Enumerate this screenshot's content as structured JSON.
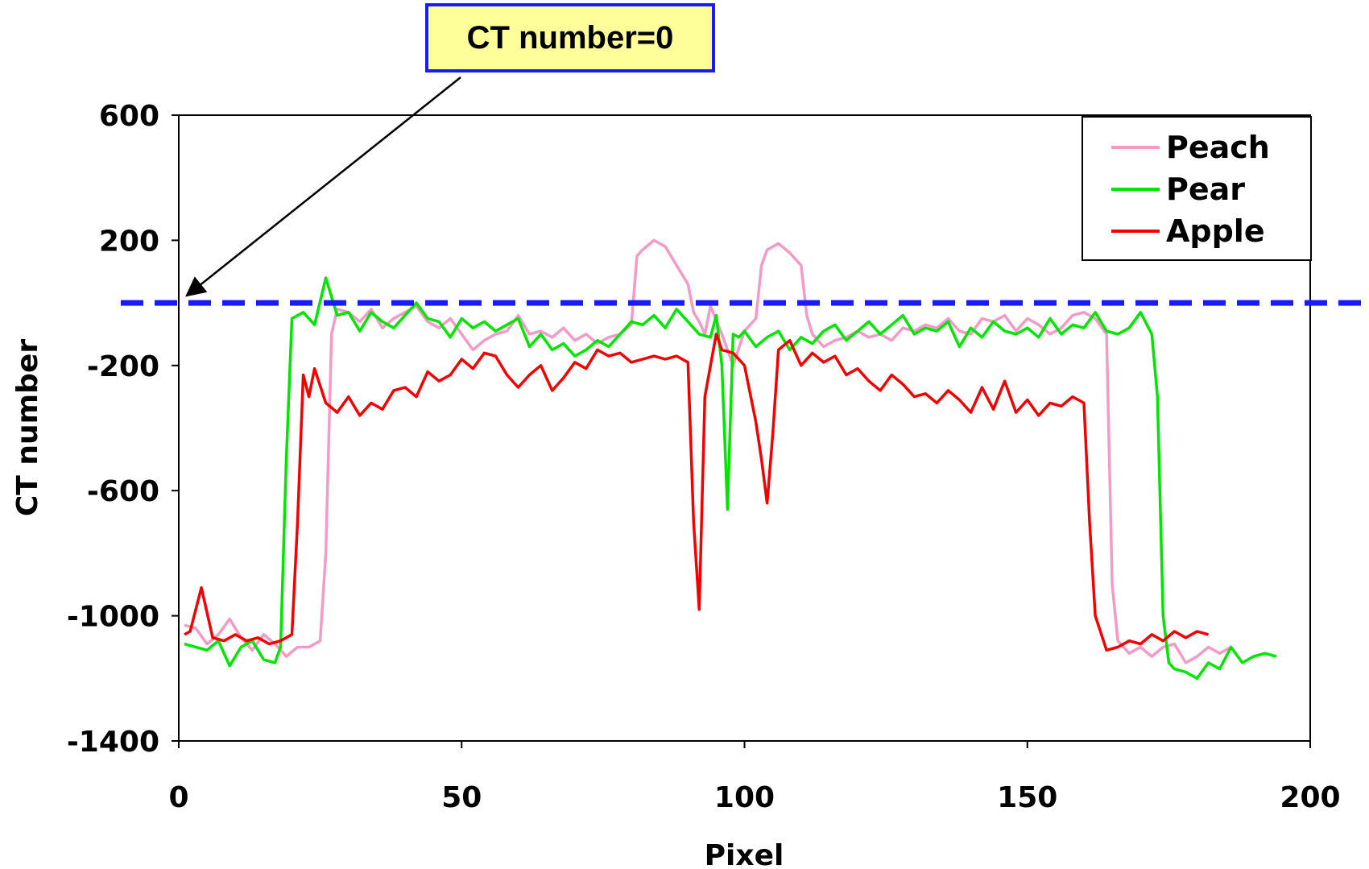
{
  "annotation": {
    "text": "CT number=0"
  },
  "colors": {
    "peach": "#f49ac6",
    "pear": "#00e400",
    "apple": "#f20000",
    "reference": "#1a1aff",
    "callout_fill": "#ffff99"
  },
  "chart_data": {
    "type": "line",
    "title": "",
    "xlabel": "Pixel",
    "ylabel": "CT number",
    "xlim": [
      0,
      200
    ],
    "ylim": [
      -1400,
      600
    ],
    "xticks": [
      0,
      50,
      100,
      150,
      200
    ],
    "yticks": [
      600,
      200,
      -200,
      -600,
      -1000,
      -1400
    ],
    "grid": false,
    "legend": "top-right",
    "reference_line": {
      "y": 0,
      "style": "dashed",
      "label": "CT number=0"
    },
    "series": [
      {
        "name": "Peach",
        "color": "#f49ac6",
        "x": [
          1,
          3,
          5,
          7,
          9,
          11,
          13,
          15,
          17,
          19,
          21,
          23,
          25,
          26,
          27,
          28,
          30,
          32,
          34,
          36,
          38,
          40,
          42,
          44,
          46,
          48,
          50,
          52,
          54,
          56,
          58,
          60,
          62,
          64,
          66,
          68,
          70,
          72,
          74,
          76,
          78,
          80,
          81,
          82,
          84,
          86,
          88,
          90,
          91,
          92,
          93,
          94,
          96,
          98,
          100,
          102,
          103,
          104,
          106,
          108,
          110,
          111,
          112,
          114,
          116,
          118,
          120,
          122,
          124,
          126,
          128,
          130,
          132,
          134,
          136,
          138,
          140,
          142,
          144,
          146,
          148,
          150,
          152,
          154,
          156,
          158,
          160,
          162,
          164,
          165,
          166,
          168,
          170,
          172,
          174,
          176,
          178,
          180,
          182,
          184,
          186
        ],
        "y": [
          -1030,
          -1040,
          -1090,
          -1060,
          -1010,
          -1070,
          -1110,
          -1060,
          -1090,
          -1130,
          -1100,
          -1100,
          -1080,
          -800,
          -100,
          -20,
          -30,
          -60,
          -20,
          -80,
          -50,
          -30,
          -10,
          -60,
          -80,
          -50,
          -100,
          -150,
          -120,
          -100,
          -90,
          -40,
          -100,
          -90,
          -110,
          -80,
          -120,
          -100,
          -130,
          -110,
          -100,
          -70,
          150,
          170,
          200,
          180,
          120,
          60,
          -30,
          -60,
          -100,
          -10,
          -100,
          -200,
          -90,
          -50,
          120,
          170,
          190,
          160,
          120,
          -40,
          -100,
          -140,
          -120,
          -110,
          -90,
          -110,
          -100,
          -120,
          -80,
          -90,
          -70,
          -80,
          -50,
          -90,
          -100,
          -50,
          -60,
          -40,
          -90,
          -50,
          -70,
          -100,
          -80,
          -40,
          -30,
          -50,
          -100,
          -900,
          -1080,
          -1120,
          -1100,
          -1130,
          -1100,
          -1090,
          -1150,
          -1130,
          -1100,
          -1120,
          -1100
        ]
      },
      {
        "name": "Pear",
        "color": "#00e400",
        "x": [
          1,
          3,
          5,
          7,
          9,
          11,
          13,
          15,
          17,
          18,
          19,
          20,
          22,
          24,
          26,
          28,
          30,
          32,
          34,
          36,
          38,
          40,
          42,
          44,
          46,
          48,
          50,
          52,
          54,
          56,
          58,
          60,
          62,
          64,
          66,
          68,
          70,
          72,
          74,
          76,
          78,
          80,
          82,
          84,
          86,
          88,
          90,
          92,
          94,
          95,
          96,
          97,
          98,
          99,
          100,
          102,
          104,
          106,
          108,
          110,
          112,
          114,
          116,
          118,
          120,
          122,
          124,
          126,
          128,
          130,
          132,
          134,
          136,
          138,
          140,
          142,
          144,
          146,
          148,
          150,
          152,
          154,
          156,
          158,
          160,
          162,
          164,
          166,
          168,
          170,
          172,
          173,
          174,
          175,
          176,
          178,
          180,
          182,
          184,
          186,
          188,
          190,
          192,
          194
        ],
        "y": [
          -1090,
          -1100,
          -1110,
          -1080,
          -1160,
          -1100,
          -1080,
          -1140,
          -1150,
          -1100,
          -500,
          -50,
          -30,
          -70,
          80,
          -40,
          -30,
          -90,
          -30,
          -60,
          -80,
          -40,
          0,
          -50,
          -60,
          -110,
          -50,
          -80,
          -60,
          -90,
          -70,
          -50,
          -140,
          -100,
          -150,
          -130,
          -170,
          -150,
          -120,
          -140,
          -100,
          -60,
          -70,
          -40,
          -80,
          -20,
          -60,
          -100,
          -110,
          -40,
          -200,
          -660,
          -100,
          -110,
          -90,
          -140,
          -110,
          -90,
          -150,
          -110,
          -130,
          -90,
          -70,
          -120,
          -90,
          -60,
          -100,
          -70,
          -40,
          -100,
          -80,
          -90,
          -60,
          -140,
          -80,
          -110,
          -60,
          -90,
          -100,
          -80,
          -110,
          -50,
          -100,
          -70,
          -80,
          -30,
          -90,
          -100,
          -80,
          -30,
          -100,
          -300,
          -1000,
          -1150,
          -1170,
          -1180,
          -1200,
          -1150,
          -1170,
          -1100,
          -1150,
          -1130,
          -1120,
          -1130
        ]
      },
      {
        "name": "Apple",
        "color": "#f20000",
        "x": [
          1,
          2,
          4,
          6,
          8,
          10,
          12,
          14,
          16,
          18,
          20,
          21,
          22,
          23,
          24,
          26,
          28,
          30,
          32,
          34,
          36,
          38,
          40,
          42,
          44,
          46,
          48,
          50,
          52,
          54,
          56,
          58,
          60,
          62,
          64,
          66,
          68,
          70,
          72,
          74,
          76,
          78,
          80,
          82,
          84,
          86,
          88,
          90,
          91,
          92,
          93,
          94,
          95,
          96,
          98,
          100,
          102,
          103,
          104,
          105,
          106,
          108,
          110,
          112,
          114,
          116,
          118,
          120,
          122,
          124,
          126,
          128,
          130,
          132,
          134,
          136,
          138,
          140,
          142,
          144,
          146,
          148,
          150,
          152,
          154,
          156,
          158,
          160,
          161,
          162,
          164,
          166,
          168,
          170,
          172,
          174,
          176,
          178,
          180,
          182
        ],
        "y": [
          -1060,
          -1050,
          -910,
          -1070,
          -1080,
          -1060,
          -1080,
          -1070,
          -1090,
          -1080,
          -1060,
          -700,
          -230,
          -300,
          -210,
          -320,
          -350,
          -300,
          -360,
          -320,
          -340,
          -280,
          -270,
          -300,
          -220,
          -250,
          -230,
          -180,
          -210,
          -160,
          -170,
          -230,
          -270,
          -230,
          -200,
          -280,
          -240,
          -190,
          -210,
          -150,
          -170,
          -160,
          -190,
          -180,
          -170,
          -180,
          -170,
          -190,
          -700,
          -980,
          -300,
          -200,
          -100,
          -150,
          -160,
          -200,
          -380,
          -500,
          -640,
          -420,
          -150,
          -120,
          -200,
          -160,
          -190,
          -170,
          -230,
          -210,
          -250,
          -280,
          -230,
          -260,
          -300,
          -290,
          -320,
          -280,
          -310,
          -350,
          -270,
          -340,
          -250,
          -350,
          -310,
          -360,
          -320,
          -330,
          -300,
          -320,
          -700,
          -1000,
          -1110,
          -1100,
          -1080,
          -1090,
          -1060,
          -1080,
          -1050,
          -1070,
          -1050,
          -1060
        ]
      }
    ]
  }
}
